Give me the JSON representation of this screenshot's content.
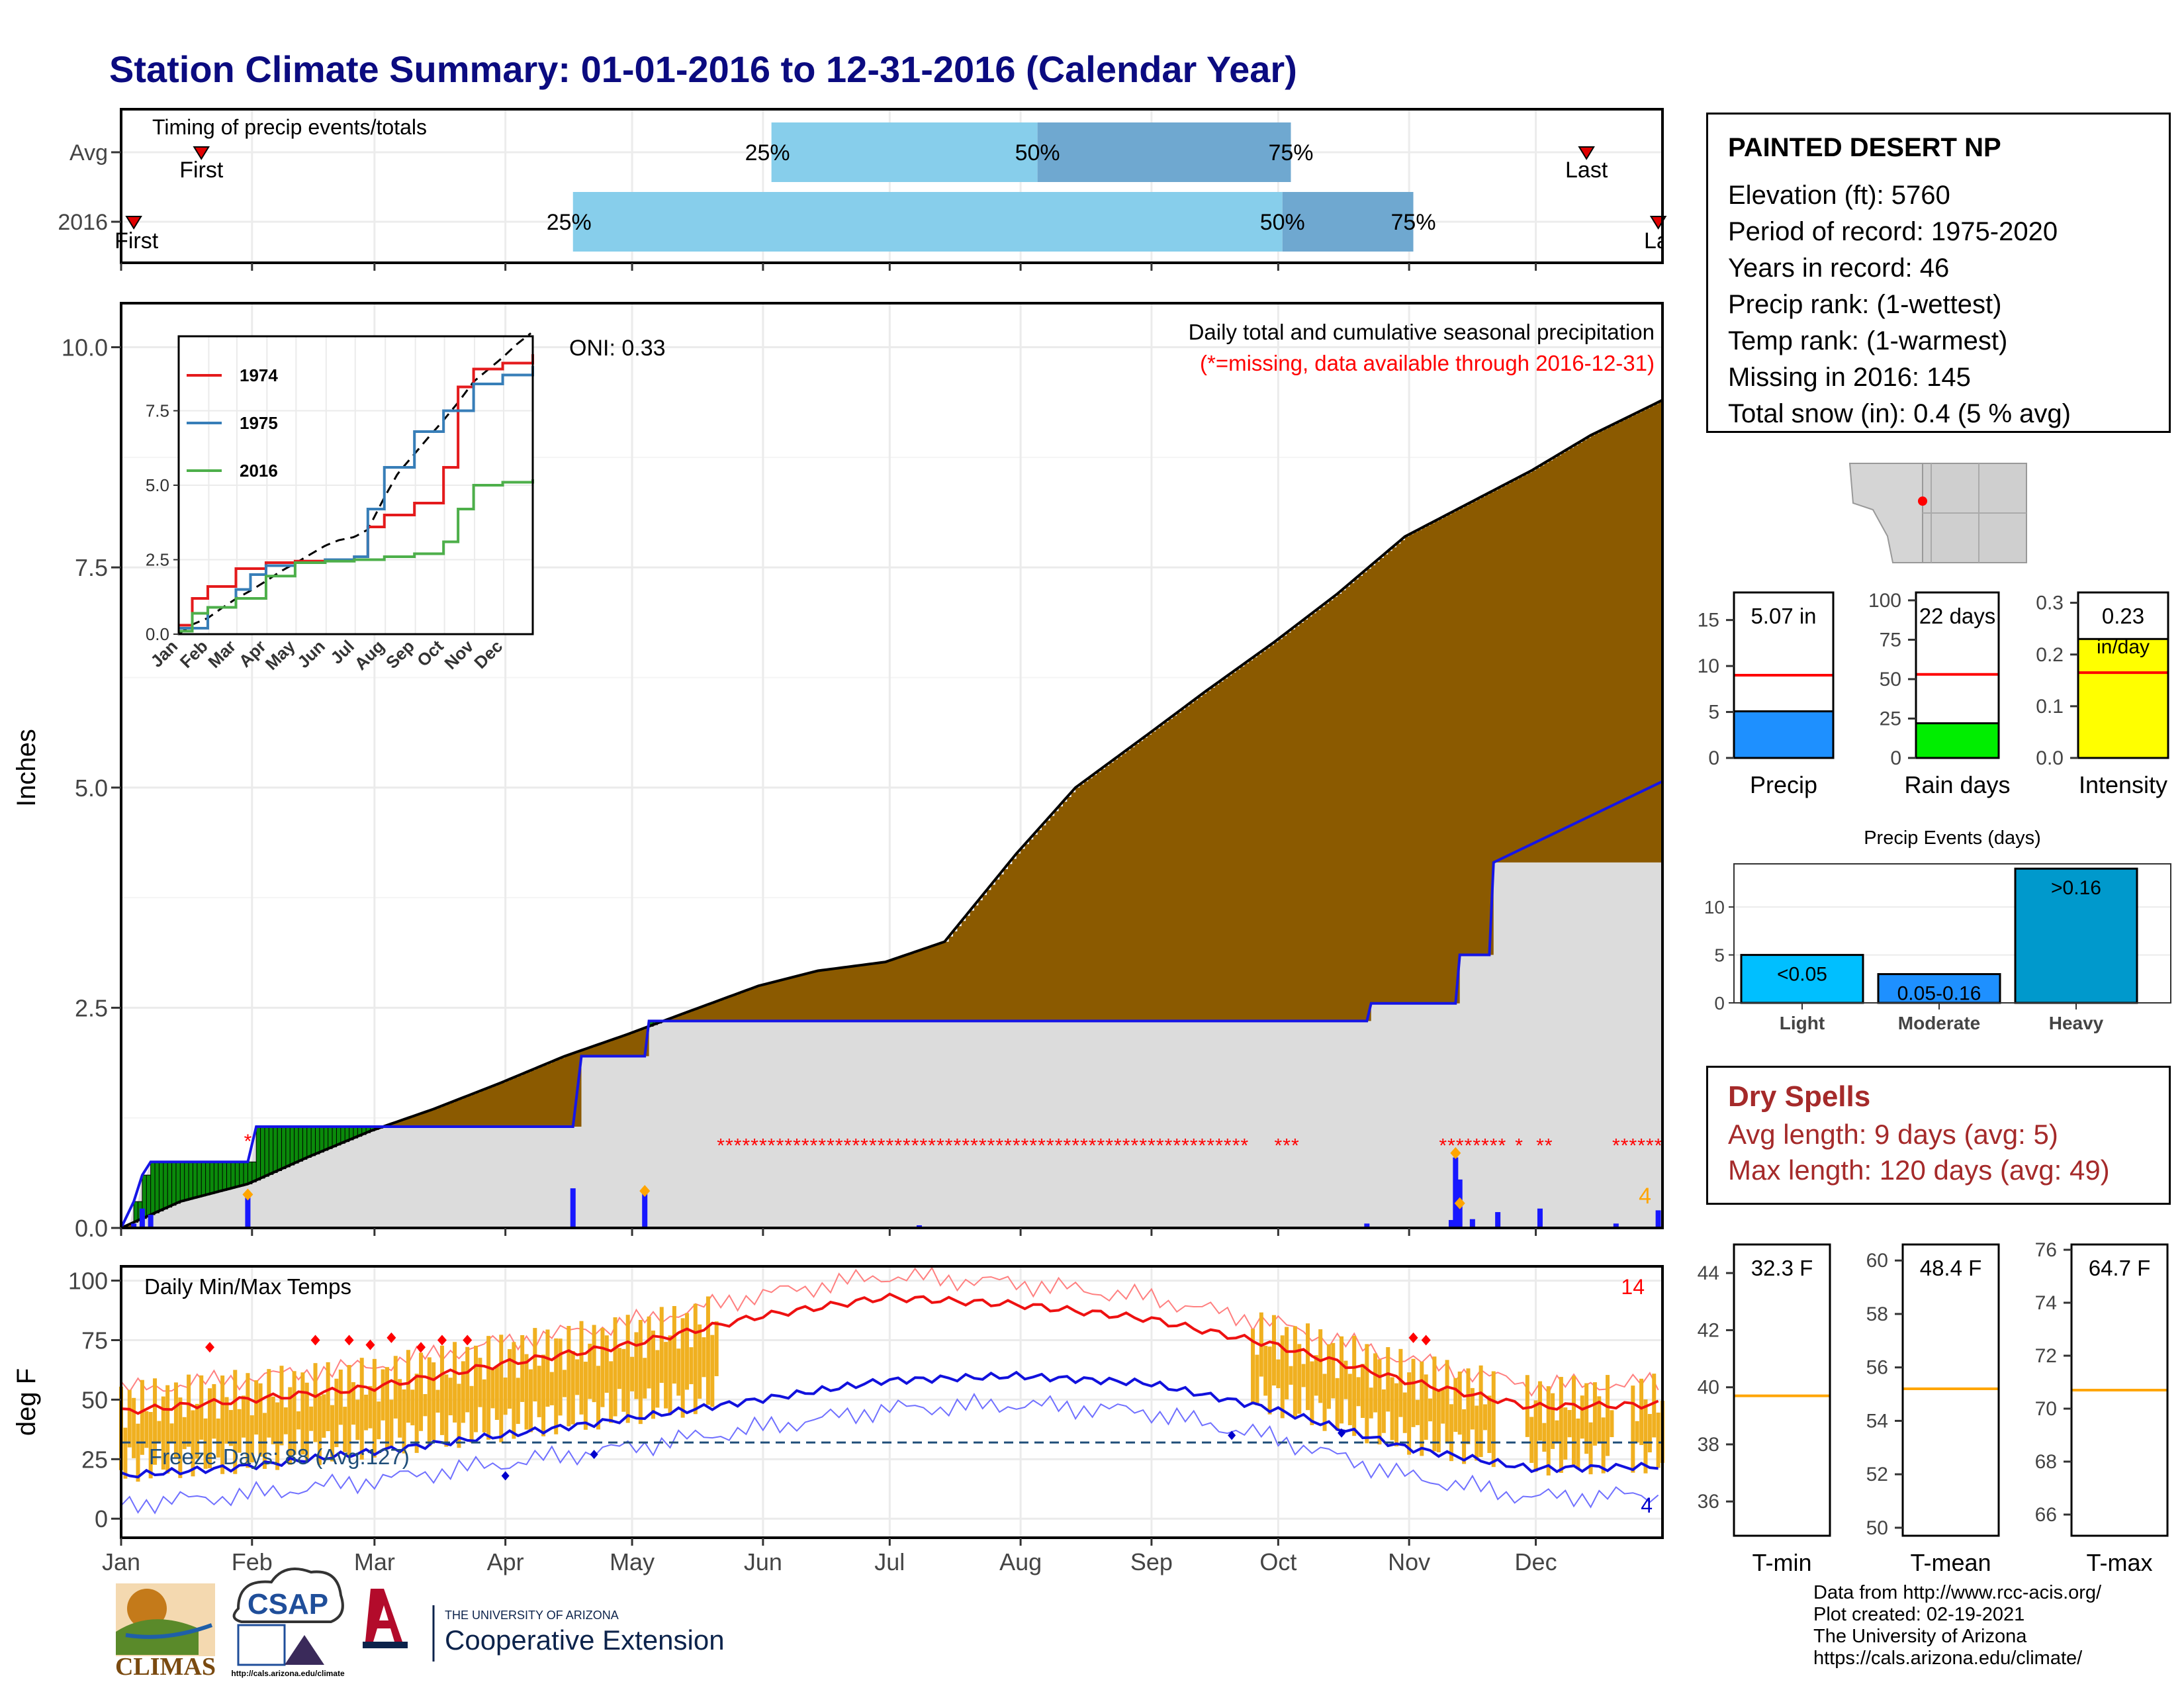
{
  "title": "Station Climate Summary: 01-01-2016 to 12-31-2016 (Calendar Year)",
  "timing": {
    "caption": "Timing of precip events/totals",
    "rows": [
      "Avg",
      "2016"
    ],
    "avg": {
      "first_doy": 20,
      "p25_doy": 155,
      "p50_doy": 218,
      "p75_doy": 278,
      "last_doy": 348
    },
    "y2016": {
      "first_doy": 4,
      "p25_doy": 108,
      "p50_doy": 276,
      "p75_doy": 307,
      "last_doy": 365
    },
    "pct_labels": [
      "25%",
      "50%",
      "75%"
    ],
    "first_label": "First",
    "last_label": "Last",
    "last_label_cut": "La"
  },
  "months": [
    "Jan",
    "Feb",
    "Mar",
    "Apr",
    "May",
    "Jun",
    "Jul",
    "Aug",
    "Sep",
    "Oct",
    "Nov",
    "Dec"
  ],
  "main": {
    "ylabel": "Inches",
    "yticks": [
      "0.0",
      "2.5",
      "5.0",
      "7.5",
      "10.0"
    ],
    "caption": "Daily total and cumulative seasonal precipitation",
    "subcaption": "(*=missing, data available through 2016-12-31)",
    "oni": "ONI: 0.33",
    "missing_count": "4"
  },
  "inset": {
    "yticks": [
      "0.0",
      "2.5",
      "5.0",
      "7.5"
    ],
    "legend": [
      "1974",
      "1975",
      "2016"
    ]
  },
  "station": {
    "name": "PAINTED DESERT NP",
    "lines": [
      "Elevation (ft): 5760",
      "Period of record: 1975-2020",
      "Years in record: 46",
      "Precip rank:  (1-wettest)",
      "Temp rank:  (1-warmest)",
      "Missing in 2016: 145",
      "Total snow (in): 0.4 (5 % avg)"
    ]
  },
  "bars": {
    "precip": {
      "label": "Precip",
      "value_label": "5.07 in",
      "yticks": [
        "0",
        "5",
        "10",
        "15"
      ]
    },
    "raindays": {
      "label": "Rain days",
      "value_label": "22 days",
      "yticks": [
        "0",
        "25",
        "50",
        "75",
        "100"
      ]
    },
    "intensity": {
      "label": "Intensity",
      "value_label": "0.23",
      "unit": "in/day",
      "yticks": [
        "0.0",
        "0.1",
        "0.2",
        "0.3"
      ]
    }
  },
  "events": {
    "title": "Precip Events (days)",
    "categories": [
      "Light",
      "Moderate",
      "Heavy"
    ],
    "labels": [
      "<0.05",
      "0.05-0.16",
      ">0.16"
    ],
    "yticks": [
      "0",
      "5",
      "10"
    ]
  },
  "dry": {
    "heading": "Dry Spells",
    "avg": "Avg length: 9 days (avg: 5)",
    "max": "Max length: 120 days (avg: 49)"
  },
  "temps": {
    "caption": "Daily Min/Max Temps",
    "ylabel": "deg F",
    "yticks": [
      "0",
      "25",
      "50",
      "75",
      "100"
    ],
    "freeze": "Freeze Days: 88 (Avg:127)",
    "max_count": "14",
    "min_count": "4"
  },
  "tbars": {
    "tmin": {
      "label": "T-min",
      "value_label": "32.3 F",
      "yticks": [
        "36",
        "38",
        "40",
        "42",
        "44"
      ]
    },
    "tmean": {
      "label": "T-mean",
      "value_label": "48.4 F",
      "yticks": [
        "50",
        "52",
        "54",
        "56",
        "58",
        "60"
      ]
    },
    "tmax": {
      "label": "T-max",
      "value_label": "64.7 F",
      "yticks": [
        "66",
        "68",
        "70",
        "72",
        "74",
        "76"
      ]
    }
  },
  "credits": [
    "Data from http://www.rcc-acis.org/",
    "Plot created: 02-19-2021",
    "The University of Arizona",
    "https://cals.arizona.edu/climate/"
  ],
  "logos": {
    "climas": "CLIMAS",
    "csap": "CSAP",
    "csap_url": "http://cals.arizona.edu/climate",
    "ua_small": "THE UNIVERSITY OF ARIZONA",
    "ua_big": "Cooperative Extension"
  },
  "chart_data": [
    {
      "type": "area",
      "title": "Daily total and cumulative seasonal precipitation",
      "ylabel": "Inches",
      "ylim": [
        0,
        10.5
      ],
      "series": [
        {
          "name": "",
          "x": [
            1,
            15,
            31,
            45,
            60,
            75,
            91,
            106,
            121,
            135,
            152,
            166,
            182,
            196,
            213,
            227,
            244,
            258,
            274,
            289,
            305,
            319,
            335,
            349,
            366
          ],
          "values": [
            0.0,
            0.3,
            0.5,
            0.8,
            1.1,
            1.35,
            1.65,
            1.95,
            2.2,
            2.45,
            2.75,
            2.92,
            3.02,
            3.25,
            4.25,
            5.0,
            5.6,
            6.1,
            6.65,
            7.2,
            7.85,
            8.2,
            8.6,
            9.0,
            9.4
          ]
        },
        {
          "name": "",
          "x": [
            1,
            4,
            6,
            8,
            31,
            33,
            108,
            110,
            125,
            126,
            296,
            297,
            317,
            318,
            325,
            326,
            366
          ],
          "values": [
            0,
            0.3,
            0.6,
            0.75,
            0.75,
            1.15,
            1.15,
            1.95,
            1.95,
            2.35,
            2.35,
            2.55,
            2.55,
            3.1,
            3.1,
            4.15,
            5.07
          ]
        }
      ]
    },
    {
      "type": "line",
      "title": "",
      "ylim": [
        0,
        10
      ],
      "series": [
        {
          "name": "1974",
          "x": [
            1,
            15,
            31,
            60,
            91,
            121,
            152,
            182,
            196,
            213,
            244,
            274,
            289,
            305,
            335,
            366
          ],
          "values": [
            0.3,
            1.2,
            1.6,
            2.2,
            2.4,
            2.45,
            2.5,
            2.6,
            3.6,
            4.0,
            4.4,
            5.6,
            8.3,
            8.9,
            9.1,
            9.4
          ]
        },
        {
          "name": "1975",
          "x": [
            1,
            31,
            60,
            75,
            91,
            121,
            152,
            182,
            196,
            213,
            244,
            274,
            305,
            335,
            366
          ],
          "values": [
            0.2,
            0.9,
            1.5,
            2.0,
            2.3,
            2.4,
            2.5,
            2.6,
            4.2,
            5.6,
            6.8,
            7.5,
            8.4,
            8.7,
            9.0
          ]
        },
        {
          "name": "2016",
          "x": [
            1,
            15,
            31,
            60,
            91,
            121,
            152,
            182,
            213,
            244,
            274,
            289,
            305,
            335,
            366
          ],
          "values": [
            0.1,
            0.7,
            0.9,
            1.2,
            1.95,
            2.4,
            2.45,
            2.5,
            2.6,
            2.7,
            3.1,
            4.2,
            5.0,
            5.1,
            5.2
          ]
        }
      ]
    },
    {
      "type": "bar",
      "categories": [
        "Precip",
        "Rain days",
        "Intensity"
      ],
      "series": [
        {
          "name": "",
          "values": [
            5.07,
            22,
            0.23
          ]
        }
      ],
      "averages": [
        9.0,
        53,
        0.165
      ]
    },
    {
      "type": "bar",
      "title": "Precip Events (days)",
      "categories": [
        "Light",
        "Moderate",
        "Heavy"
      ],
      "values": [
        5,
        3,
        14
      ],
      "ylim": [
        0,
        14.5
      ]
    },
    {
      "type": "line",
      "title": "Daily Min/Max Temps",
      "ylabel": "deg F",
      "ylim": [
        -8,
        106
      ],
      "series": [
        {
          "name": "",
          "x": [
            1,
            31,
            60,
            91,
            121,
            152,
            182,
            213,
            244,
            274,
            305,
            335,
            366
          ],
          "values": [
            45,
            50,
            55,
            65,
            73,
            85,
            93,
            90,
            84,
            73,
            58,
            47,
            48
          ]
        },
        {
          "name": "",
          "x": [
            1,
            31,
            60,
            91,
            121,
            152,
            182,
            213,
            244,
            274,
            305,
            335,
            366
          ],
          "values": [
            18,
            22,
            28,
            35,
            42,
            50,
            58,
            60,
            57,
            46,
            30,
            21,
            22
          ]
        }
      ],
      "freeze_line": 32
    },
    {
      "type": "bar",
      "categories": [
        "T-min",
        "T-mean",
        "T-max"
      ],
      "values": [
        32.3,
        48.4,
        64.7
      ],
      "averages": [
        39.7,
        55.2,
        70.7
      ]
    }
  ]
}
